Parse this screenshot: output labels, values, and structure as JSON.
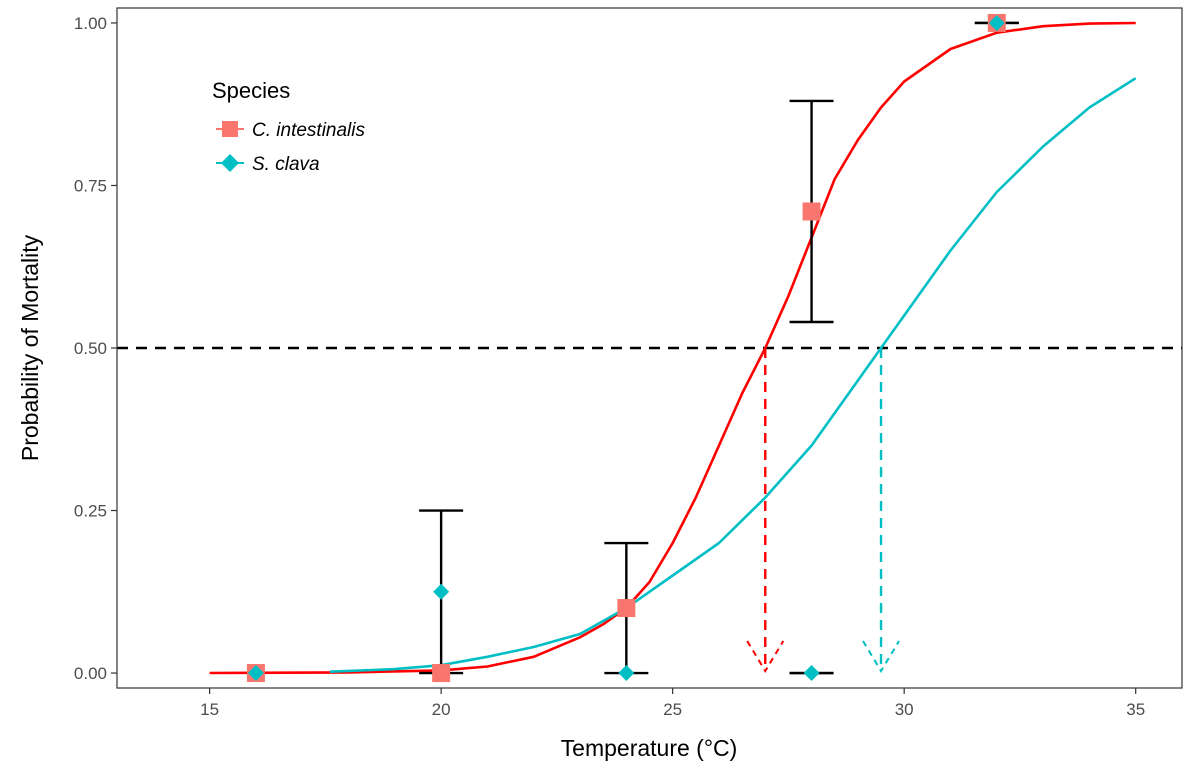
{
  "chart_data": {
    "type": "line",
    "xlabel": "Temperature (°C)",
    "ylabel": "Probability of Mortality",
    "xlim": [
      13,
      36
    ],
    "ylim": [
      -0.023,
      1.023
    ],
    "x_ticks": [
      15,
      20,
      25,
      30,
      35
    ],
    "y_ticks": [
      0,
      0.25,
      0.5,
      0.75,
      1
    ],
    "x_tick_labels": [
      "15",
      "20",
      "25",
      "30",
      "35"
    ],
    "y_tick_labels": [
      "0.00",
      "0.25",
      "0.50",
      "0.75",
      "1.00"
    ],
    "grid": false,
    "legend": {
      "title": "Species",
      "placement": "top-left",
      "entries": [
        {
          "label": "C. intestinalis",
          "marker": "square",
          "color": "#F8766D"
        },
        {
          "label": "S. clava",
          "marker": "diamond",
          "color": "#00BFC4"
        }
      ]
    },
    "reference_line": {
      "y": 0.5,
      "style": "dashed",
      "color": "#000000"
    },
    "series": [
      {
        "name": "C. intestinalis",
        "marker": "square",
        "marker_color": "#F8766D",
        "curve_color": "#FF0000",
        "lt50": 27.0,
        "points": [
          {
            "x": 16,
            "y": 0.0
          },
          {
            "x": 20,
            "y": 0.0
          },
          {
            "x": 24,
            "y": 0.1
          },
          {
            "x": 28,
            "y": 0.71
          },
          {
            "x": 32,
            "y": 1.0
          }
        ],
        "curve": {
          "x": [
            15,
            18,
            20,
            21,
            22,
            23,
            23.5,
            24,
            24.5,
            25,
            25.5,
            26,
            26.5,
            27,
            27.5,
            28,
            28.5,
            29,
            29.5,
            30,
            31,
            32,
            33,
            34,
            35
          ],
          "y": [
            0.0,
            0.001,
            0.004,
            0.01,
            0.025,
            0.055,
            0.075,
            0.1,
            0.14,
            0.2,
            0.27,
            0.35,
            0.43,
            0.5,
            0.58,
            0.67,
            0.76,
            0.82,
            0.87,
            0.91,
            0.96,
            0.985,
            0.995,
            0.999,
            1.0
          ]
        }
      },
      {
        "name": "S. clava",
        "marker": "diamond",
        "marker_color": "#00BFC4",
        "curve_color": "#00BFC4",
        "lt50": 29.5,
        "points": [
          {
            "x": 16,
            "y": 0.0
          },
          {
            "x": 20,
            "y": 0.125
          },
          {
            "x": 24,
            "y": 0.0
          },
          {
            "x": 28,
            "y": 0.0
          },
          {
            "x": 32,
            "y": 1.0
          }
        ],
        "curve": {
          "x": [
            17.6,
            19,
            20,
            21,
            22,
            23,
            24,
            25,
            26,
            27,
            28,
            29,
            29.5,
            30,
            31,
            32,
            33,
            34,
            35
          ],
          "y": [
            0.002,
            0.006,
            0.012,
            0.025,
            0.04,
            0.06,
            0.1,
            0.15,
            0.2,
            0.27,
            0.35,
            0.45,
            0.5,
            0.55,
            0.65,
            0.74,
            0.81,
            0.87,
            0.915
          ]
        }
      }
    ],
    "error_bars": [
      {
        "x": 20,
        "low": 0.0,
        "high": 0.25
      },
      {
        "x": 24,
        "low": 0.0,
        "high": 0.2
      },
      {
        "x": 28,
        "low": 0.54,
        "high": 0.88
      },
      {
        "x": 28,
        "low": 0.0,
        "high": 0.0
      },
      {
        "x": 32,
        "low": 1.0,
        "high": 1.0
      }
    ]
  }
}
